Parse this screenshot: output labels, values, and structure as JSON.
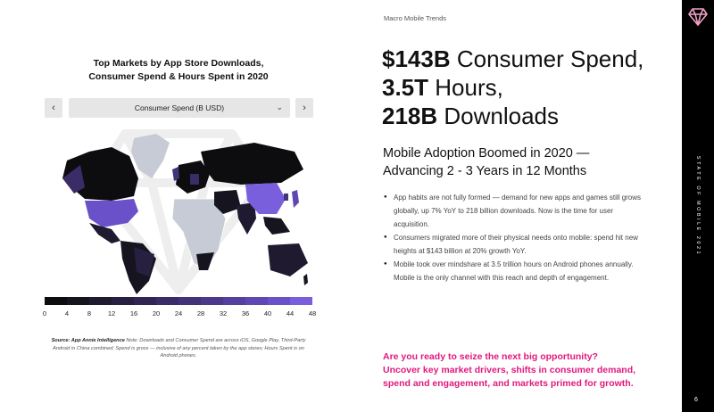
{
  "left": {
    "title_line1": "Top Markets by App Store Downloads,",
    "title_line2": "Consumer Spend & Hours Spent in 2020",
    "nav_prev": "‹",
    "nav_next": "›",
    "selector_value": "Consumer Spend (B USD)",
    "selector_icon": "chevron-down-icon",
    "scale_ticks": [
      "0",
      "4",
      "8",
      "12",
      "16",
      "20",
      "24",
      "28",
      "32",
      "36",
      "40",
      "44",
      "48"
    ],
    "scale_colors": [
      "#0d0d10",
      "#16141f",
      "#1f1a30",
      "#282041",
      "#312653",
      "#3a2c66",
      "#433379",
      "#4c398c",
      "#5540a0",
      "#5f47b4",
      "#6a50c9",
      "#7a5fdc"
    ],
    "footnote_source": "Source: App Annie Intelligence",
    "footnote_text": " Note: Downloads and Consumer Spend are across iOS, Google Play, Third-Party Android in China combined; Spend is gross — inclusive of any percent taken by the app stores; Hours Spent is on Android phones."
  },
  "right": {
    "kicker": "Macro Mobile Trends",
    "headline_1b": "$143B",
    "headline_1": " Consumer Spend, ",
    "headline_2b": "3.5T",
    "headline_2": " Hours, ",
    "headline_3b": "218B",
    "headline_3": " Downloads",
    "subhead_line1": "Mobile Adoption Boomed in 2020 —",
    "subhead_line2": "Advancing 2 - 3 Years in 12 Months",
    "bullets": [
      "App habits are not fully formed — demand for new apps and games still grows globally, up 7% YoY to 218 billion downloads. Now is the time for user acquisition.",
      "Consumers migrated more of their physical needs onto mobile: spend hit new heights at $143 billion at 20% growth YoY.",
      "Mobile took over mindshare at 3.5 trillion hours on Android phones annually. Mobile is the only channel with this reach and depth of engagement."
    ],
    "cta_line1": "Are you ready to seize the next big opportunity?",
    "cta_line2": "Uncover key market drivers, shifts in consumer demand,",
    "cta_line3": "spend and engagement, and markets primed for growth."
  },
  "sidebar": {
    "vertical_label": "STATE OF MOBILE 2021",
    "page_number": "6",
    "logo_icon": "gem-logo-icon"
  },
  "colors": {
    "accent_pink": "#e0197d",
    "map_top": "#7a5fdc",
    "map_dark": "#0d0d10",
    "map_nodata": "#c7cbd6"
  }
}
